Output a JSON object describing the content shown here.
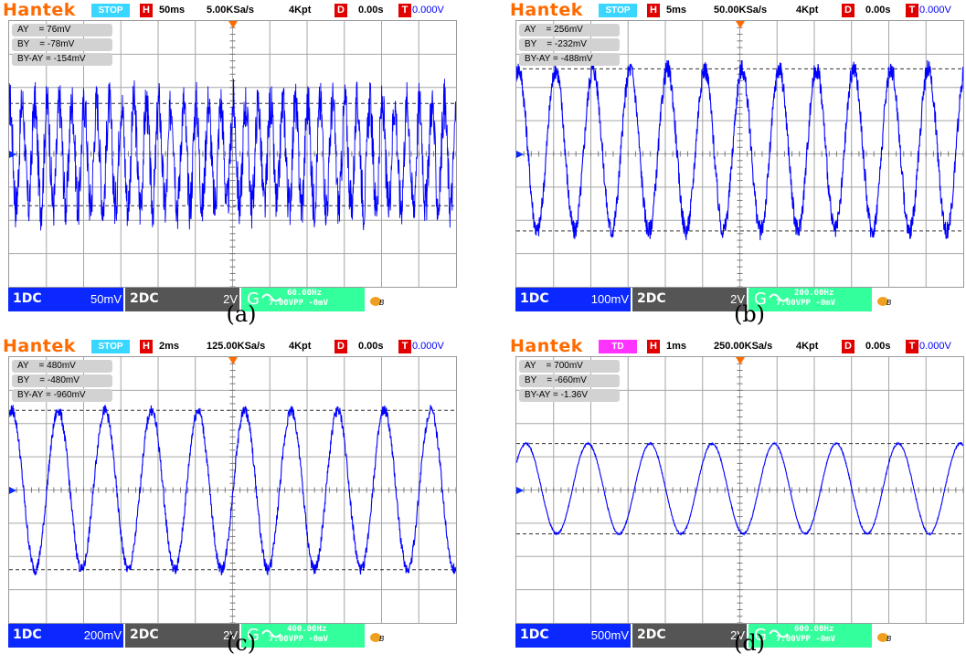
{
  "colors": {
    "brand": "#ff6a00",
    "trace": "#0000ff",
    "ch1": "#0a28ff",
    "ch2": "#555555",
    "generator": "#33ff9c",
    "stop": "#39d7ff",
    "td": "#ff33ff",
    "red": "#e00000"
  },
  "panels": [
    {
      "logo": "Hantek",
      "state": "STOP",
      "state_color": "#39d7ff",
      "h_label": "H",
      "timebase": "50ms",
      "sample_rate": "5.00KSa/s",
      "memory": "4Kpt",
      "d_label": "D",
      "delay": "0.00s",
      "t_label": "T",
      "trigger_level": "0.000V",
      "cursor_ay": "AY    = 76mV",
      "cursor_by": "BY    = -78mV",
      "cursor_diff": "BY-AY = -154mV",
      "ch1_name": "1DC",
      "ch1_scale": "50mV",
      "ch2_name": "2DC",
      "ch2_scale": "2V",
      "gen_letter": "G",
      "gen_freq": "60.00Hz",
      "gen_amp": "7.00VPP -0mV",
      "caption": "(a)",
      "signal": {
        "frequency_hz": 60.0,
        "cursor_ay_mv": 76,
        "cursor_by_mv": -78,
        "volts_per_div_mv": 50,
        "time_per_div_ms": 50
      }
    },
    {
      "logo": "Hantek",
      "state": "STOP",
      "state_color": "#39d7ff",
      "h_label": "H",
      "timebase": "5ms",
      "sample_rate": "50.00KSa/s",
      "memory": "4Kpt",
      "d_label": "D",
      "delay": "0.00s",
      "t_label": "T",
      "trigger_level": "0.000V",
      "cursor_ay": "AY    = 256mV",
      "cursor_by": "BY    = -232mV",
      "cursor_diff": "BY-AY = -488mV",
      "ch1_name": "1DC",
      "ch1_scale": "100mV",
      "ch2_name": "2DC",
      "ch2_scale": "2V",
      "gen_letter": "G",
      "gen_freq": "200.00Hz",
      "gen_amp": "7.00VPP -0mV",
      "caption": "(b)",
      "signal": {
        "frequency_hz": 200.0,
        "cursor_ay_mv": 256,
        "cursor_by_mv": -232,
        "volts_per_div_mv": 100,
        "time_per_div_ms": 5
      }
    },
    {
      "logo": "Hantek",
      "state": "STOP",
      "state_color": "#39d7ff",
      "h_label": "H",
      "timebase": "2ms",
      "sample_rate": "125.00KSa/s",
      "memory": "4Kpt",
      "d_label": "D",
      "delay": "0.00s",
      "t_label": "T",
      "trigger_level": "0.000V",
      "cursor_ay": "AY    = 480mV",
      "cursor_by": "BY    = -480mV",
      "cursor_diff": "BY-AY = -960mV",
      "ch1_name": "1DC",
      "ch1_scale": "200mV",
      "ch2_name": "2DC",
      "ch2_scale": "2V",
      "gen_letter": "G",
      "gen_freq": "400.00Hz",
      "gen_amp": "7.00VPP -0mV",
      "caption": "(c)",
      "signal": {
        "frequency_hz": 400.0,
        "cursor_ay_mv": 480,
        "cursor_by_mv": -480,
        "volts_per_div_mv": 200,
        "time_per_div_ms": 2
      }
    },
    {
      "logo": "Hantek",
      "state": "TD",
      "state_color": "#ff33ff",
      "h_label": "H",
      "timebase": "1ms",
      "sample_rate": "250.00KSa/s",
      "memory": "4Kpt",
      "d_label": "D",
      "delay": "0.00s",
      "t_label": "T",
      "trigger_level": "0.000V",
      "cursor_ay": "AY    = 700mV",
      "cursor_by": "BY    = -660mV",
      "cursor_diff": "BY-AY = -1.36V",
      "ch1_name": "1DC",
      "ch1_scale": "500mV",
      "ch2_name": "2DC",
      "ch2_scale": "2V",
      "gen_letter": "G",
      "gen_freq": "600.00Hz",
      "gen_amp": "7.00VPP -0mV",
      "caption": "(d)",
      "signal": {
        "frequency_hz": 600.0,
        "cursor_ay_mv": 700,
        "cursor_by_mv": -660,
        "volts_per_div_mv": 500,
        "time_per_div_ms": 1
      }
    }
  ]
}
